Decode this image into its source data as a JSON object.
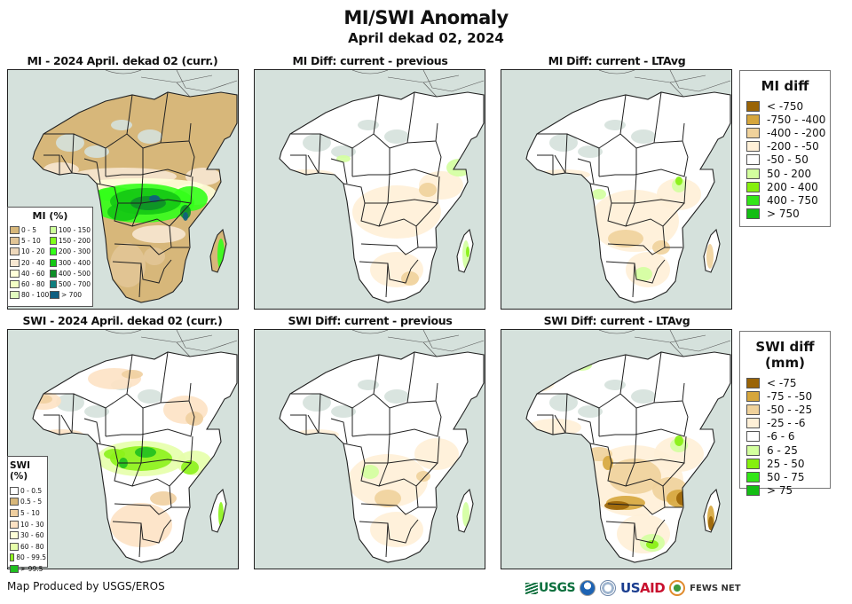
{
  "header": {
    "title": "MI/SWI Anomaly",
    "subtitle": "April dekad 02, 2024"
  },
  "panels": [
    {
      "title": "MI - 2024 April. dekad 02 (curr.)",
      "variable": "MI",
      "kind": "current",
      "row": "top"
    },
    {
      "title": "MI Diff: current - previous",
      "variable": "MI",
      "kind": "diff-previous",
      "row": "top"
    },
    {
      "title": "MI Diff: current - LTAvg",
      "variable": "MI",
      "kind": "diff-ltavg",
      "row": "top"
    },
    {
      "title": "SWI - 2024 April. dekad 02 (curr.)",
      "variable": "SWI",
      "kind": "current",
      "row": "bottom"
    },
    {
      "title": "SWI Diff: current - previous",
      "variable": "SWI",
      "kind": "diff-previous",
      "row": "bottom"
    },
    {
      "title": "SWI Diff: current - LTAvg",
      "variable": "SWI",
      "kind": "diff-ltavg",
      "row": "bottom"
    }
  ],
  "legends": {
    "mi": {
      "title": "MI (%)",
      "items": [
        {
          "label": "0 - 5",
          "color": "#d7b77a"
        },
        {
          "label": "5 - 10",
          "color": "#e2c596"
        },
        {
          "label": "10 - 20",
          "color": "#eed8bb"
        },
        {
          "label": "20 - 40",
          "color": "#f7e7d2"
        },
        {
          "label": "40 - 60",
          "color": "#ffffd9"
        },
        {
          "label": "60 - 80",
          "color": "#f3ffc4"
        },
        {
          "label": "80 - 100",
          "color": "#e2fcc0"
        },
        {
          "label": "100 - 150",
          "color": "#ccff99"
        },
        {
          "label": "150 - 200",
          "color": "#80ff1a"
        },
        {
          "label": "200 - 300",
          "color": "#33ff1a"
        },
        {
          "label": "300 - 400",
          "color": "#14c714"
        },
        {
          "label": "400 - 500",
          "color": "#0e8f28"
        },
        {
          "label": "500 - 700",
          "color": "#0f7f7f"
        },
        {
          "label": "> 700",
          "color": "#0f5f80"
        }
      ]
    },
    "swi": {
      "title": "SWI (%)",
      "items": [
        {
          "label": "0 - 0.5",
          "color": "#ffffff"
        },
        {
          "label": "0.5 - 5",
          "color": "#d7b77a"
        },
        {
          "label": "5 - 10",
          "color": "#efcfa0"
        },
        {
          "label": "10 - 30",
          "color": "#fde2c4"
        },
        {
          "label": "30 - 60",
          "color": "#feffd8"
        },
        {
          "label": "60 - 80",
          "color": "#e6ffaa"
        },
        {
          "label": "80 - 99.5",
          "color": "#8cf21a"
        },
        {
          "label": "> 99.5",
          "color": "#1fbf1f"
        }
      ]
    },
    "mi_diff": {
      "title": "MI diff",
      "items": [
        {
          "label": "< -750",
          "color": "#9a6406"
        },
        {
          "label": "-750 - -400",
          "color": "#d6a63c"
        },
        {
          "label": "-400 - -200",
          "color": "#f0d29b"
        },
        {
          "label": "-200 - -50",
          "color": "#fff0d7"
        },
        {
          "label": "-50 - 50",
          "color": "#ffffff"
        },
        {
          "label": "50 - 200",
          "color": "#d3ff9e"
        },
        {
          "label": "200 - 400",
          "color": "#86f00e"
        },
        {
          "label": "400 - 750",
          "color": "#32e617"
        },
        {
          "label": "> 750",
          "color": "#14be14"
        }
      ]
    },
    "swi_diff": {
      "title": "SWI diff (mm)",
      "items": [
        {
          "label": "< -75",
          "color": "#9a6406"
        },
        {
          "label": "-75 - -50",
          "color": "#d6a63c"
        },
        {
          "label": "-50 - -25",
          "color": "#f0d29b"
        },
        {
          "label": "-25 - -6",
          "color": "#fff0d7"
        },
        {
          "label": "-6 - 6",
          "color": "#ffffff"
        },
        {
          "label": "6 - 25",
          "color": "#d3ff9e"
        },
        {
          "label": "25 - 50",
          "color": "#86f00e"
        },
        {
          "label": "50 - 75",
          "color": "#32e617"
        },
        {
          "label": "> 75",
          "color": "#14be14"
        }
      ]
    }
  },
  "colors": {
    "ocean": "#d5e1dc",
    "border": "#222222"
  },
  "footer": {
    "credit": "Map Produced by USGS/EROS",
    "logos": [
      "USGS",
      "NOAA",
      "DHS",
      "USAID",
      "FEWS NET"
    ],
    "usgs_label": "USGS",
    "usaid_us": "US",
    "usaid_aid": "AID",
    "fews_label": "FEWS NET"
  }
}
